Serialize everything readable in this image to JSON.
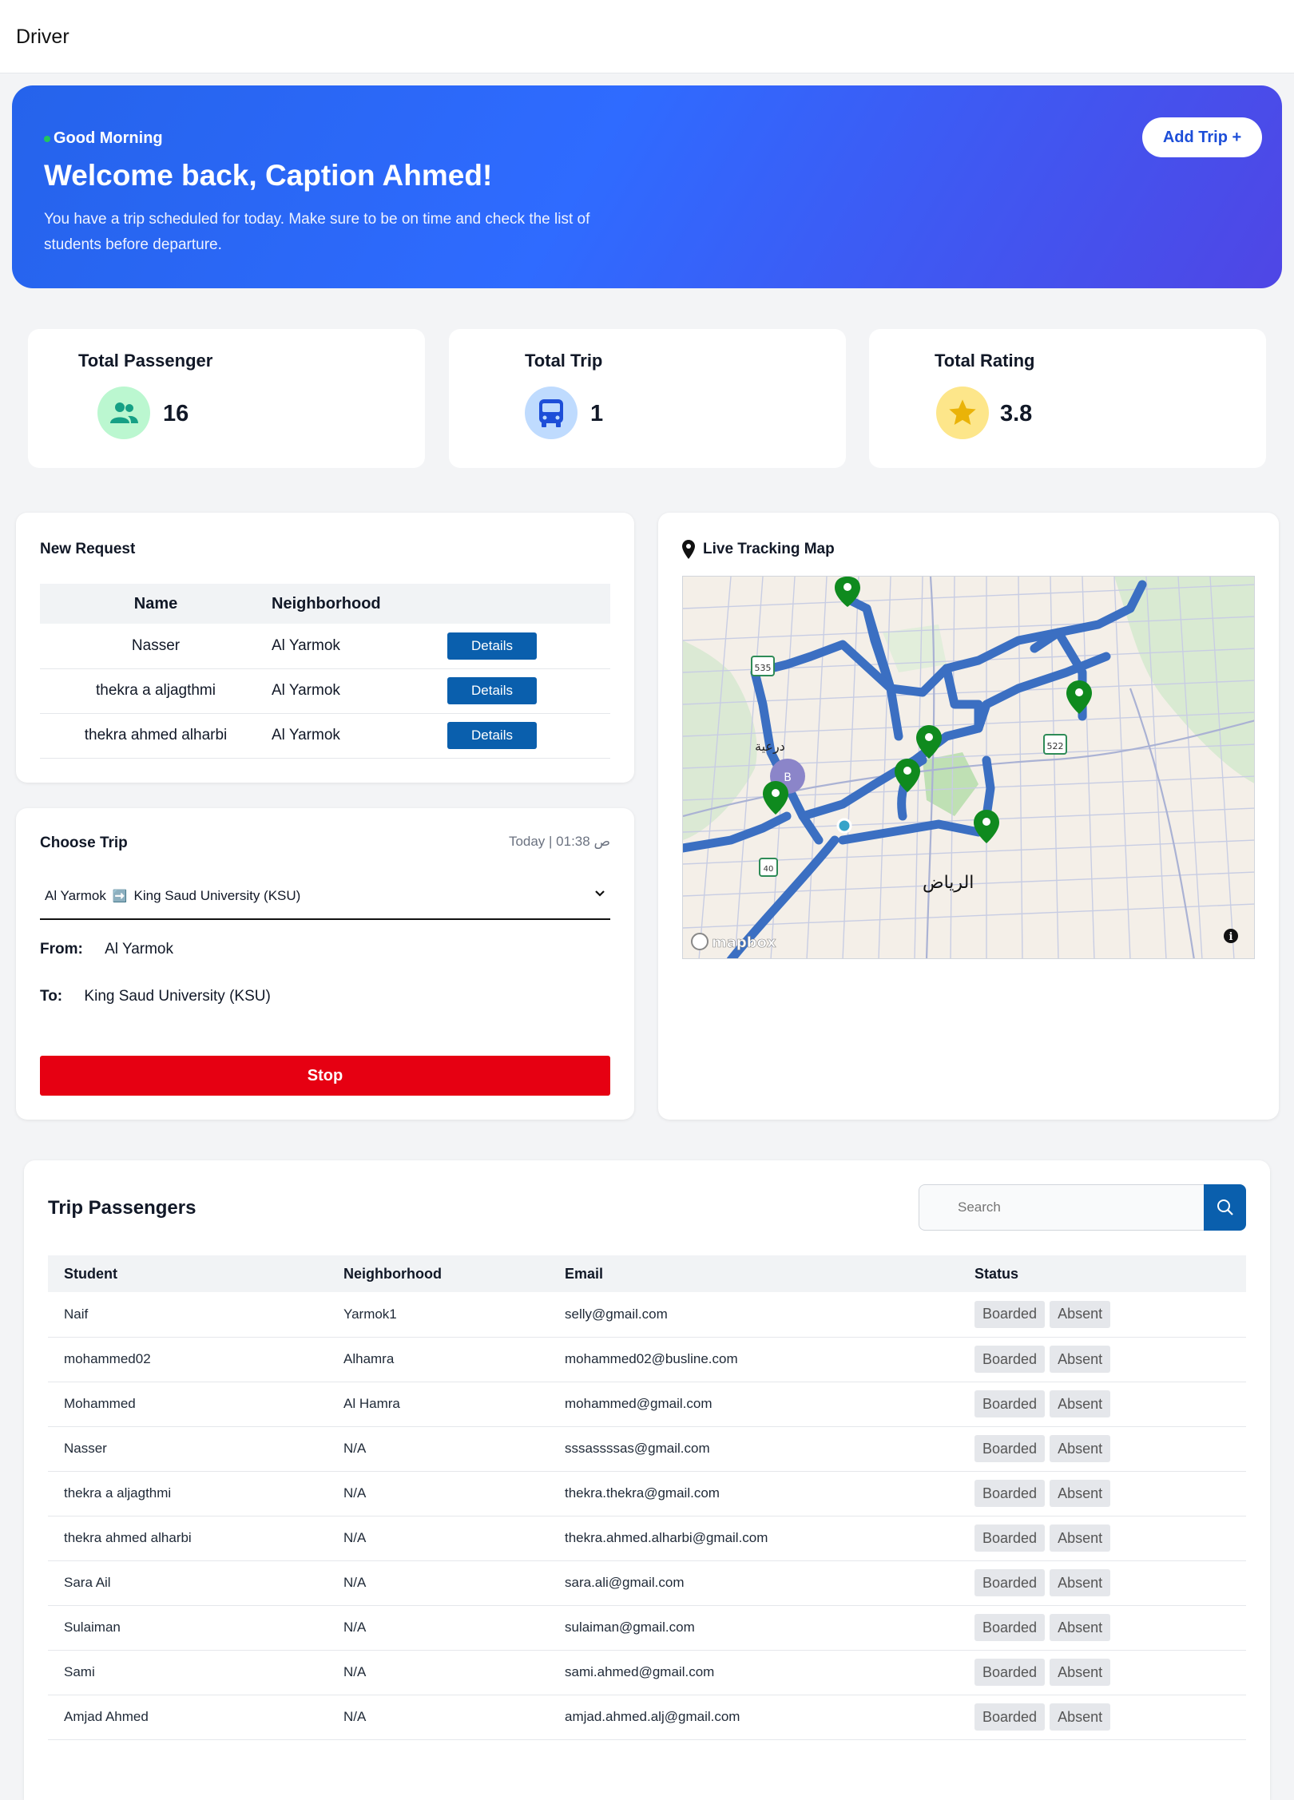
{
  "header": {
    "title": "Driver"
  },
  "hero": {
    "greeting": "Good Morning",
    "welcome": "Welcome back, Caption Ahmed!",
    "description": "You have a trip scheduled for today. Make sure to be on time and check the list of students before departure.",
    "add_trip_label": "Add Trip +"
  },
  "stats": {
    "passenger": {
      "label": "Total Passenger",
      "value": "16"
    },
    "trip": {
      "label": "Total Trip",
      "value": "1"
    },
    "rating": {
      "label": "Total Rating",
      "value": "3.8"
    }
  },
  "new_request": {
    "title": "New Request",
    "columns": {
      "name": "Name",
      "neighborhood": "Neighborhood"
    },
    "details_label": "Details",
    "rows": [
      {
        "name": "Nasser",
        "neighborhood": "Al Yarmok"
      },
      {
        "name": "thekra a aljagthmi",
        "neighborhood": "Al Yarmok"
      },
      {
        "name": "thekra ahmed alharbi",
        "neighborhood": "Al Yarmok"
      }
    ]
  },
  "choose_trip": {
    "title": "Choose Trip",
    "time": "Today | 01:38 ص",
    "selected_from": "Al Yarmok",
    "selected_arrow": "➡️",
    "selected_to": "King Saud University (KSU)",
    "from_label": "From:",
    "from_value": "Al Yarmok",
    "to_label": "To:",
    "to_value": "King Saud University (KSU)",
    "stop_label": "Stop"
  },
  "map": {
    "title": "Live Tracking Map",
    "city_label": "الرياض",
    "district_label": "درعية",
    "cluster_label": "B",
    "badges": [
      "535",
      "522",
      "40"
    ],
    "attribution": "mapbox",
    "info_icon": "info-icon",
    "colors": {
      "route": "#3b6fc2",
      "marker": "#0f8a1e"
    }
  },
  "passengers": {
    "title": "Trip Passengers",
    "search_placeholder": "Search",
    "columns": {
      "student": "Student",
      "neighborhood": "Neighborhood",
      "email": "Email",
      "status": "Status"
    },
    "boarded_label": "Boarded",
    "absent_label": "Absent",
    "rows": [
      {
        "student": "Naif",
        "neighborhood": "Yarmok1",
        "email": "selly@gmail.com"
      },
      {
        "student": "mohammed02",
        "neighborhood": "Alhamra",
        "email": "mohammed02@busline.com"
      },
      {
        "student": "Mohammed",
        "neighborhood": "Al Hamra",
        "email": "mohammed@gmail.com"
      },
      {
        "student": "Nasser",
        "neighborhood": "N/A",
        "email": "sssassssas@gmail.com"
      },
      {
        "student": "thekra a aljagthmi",
        "neighborhood": "N/A",
        "email": "thekra.thekra@gmail.com"
      },
      {
        "student": "thekra ahmed alharbi",
        "neighborhood": "N/A",
        "email": "thekra.ahmed.alharbi@gmail.com"
      },
      {
        "student": "Sara Ail",
        "neighborhood": "N/A",
        "email": "sara.ali@gmail.com"
      },
      {
        "student": "Sulaiman",
        "neighborhood": "N/A",
        "email": "sulaiman@gmail.com"
      },
      {
        "student": "Sami",
        "neighborhood": "N/A",
        "email": "sami.ahmed@gmail.com"
      },
      {
        "student": "Amjad Ahmed",
        "neighborhood": "N/A",
        "email": "amjad.ahmed.alj@gmail.com"
      }
    ]
  }
}
